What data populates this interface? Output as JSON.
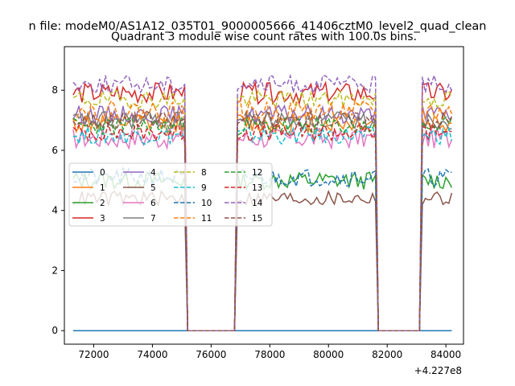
{
  "chart_data": {
    "type": "line",
    "suptitle": "n file: modeM0/AS1A12_035T01_9000005666_41406cztM0_level2_quad_clean",
    "title": "Quadrant 3 module wise count rates with 100.0s bins.",
    "xlabel": "",
    "ylabel": "",
    "x_offset_label": "+4.227e8",
    "xlim": [
      71000,
      84600
    ],
    "ylim": [
      -0.45,
      9.45
    ],
    "x_ticks": [
      72000,
      74000,
      76000,
      78000,
      80000,
      82000,
      84000
    ],
    "x_tick_labels": [
      "72000",
      "74000",
      "76000",
      "78000",
      "80000",
      "82000",
      "84000"
    ],
    "y_ticks": [
      0,
      2,
      4,
      6,
      8
    ],
    "y_tick_labels": [
      "0",
      "2",
      "4",
      "6",
      "8"
    ],
    "grid": false,
    "legend_position": "center-left",
    "legend_columns": 4,
    "bin_seconds": 100,
    "segments": [
      {
        "x_start": 71300,
        "x_end": 75100
      },
      {
        "x_start": 76900,
        "x_end": 81600
      },
      {
        "x_start": 83200,
        "x_end": 84200
      }
    ],
    "gap_value": 0,
    "series": [
      {
        "name": "0",
        "color": "#1f77b4",
        "dash": "solid",
        "level": 0.0,
        "noise": 0.0
      },
      {
        "name": "1",
        "color": "#ff7f0e",
        "dash": "solid",
        "level": 6.9,
        "noise": 0.35
      },
      {
        "name": "2",
        "color": "#2ca02c",
        "dash": "solid",
        "level": 5.0,
        "noise": 0.3
      },
      {
        "name": "3",
        "color": "#d62728",
        "dash": "solid",
        "level": 7.9,
        "noise": 0.35
      },
      {
        "name": "4",
        "color": "#9467bd",
        "dash": "solid",
        "level": 7.2,
        "noise": 0.3
      },
      {
        "name": "5",
        "color": "#8c564b",
        "dash": "solid",
        "level": 4.4,
        "noise": 0.25
      },
      {
        "name": "6",
        "color": "#e377c2",
        "dash": "solid",
        "level": 6.4,
        "noise": 0.35
      },
      {
        "name": "7",
        "color": "#7f7f7f",
        "dash": "solid",
        "level": 7.0,
        "noise": 0.3
      },
      {
        "name": "8",
        "color": "#bcbd22",
        "dash": "dashed",
        "level": 7.7,
        "noise": 0.3
      },
      {
        "name": "9",
        "color": "#17becf",
        "dash": "dashed",
        "level": 6.5,
        "noise": 0.3
      },
      {
        "name": "10",
        "color": "#1f77b4",
        "dash": "dashed",
        "level": 5.1,
        "noise": 0.3
      },
      {
        "name": "11",
        "color": "#ff7f0e",
        "dash": "dashed",
        "level": 7.3,
        "noise": 0.35
      },
      {
        "name": "12",
        "color": "#2ca02c",
        "dash": "dashed",
        "level": 6.8,
        "noise": 0.3
      },
      {
        "name": "13",
        "color": "#d62728",
        "dash": "dashed",
        "level": 6.6,
        "noise": 0.3
      },
      {
        "name": "14",
        "color": "#9467bd",
        "dash": "dashed",
        "level": 8.2,
        "noise": 0.3
      },
      {
        "name": "15",
        "color": "#8c564b",
        "dash": "dashed",
        "level": 7.0,
        "noise": 0.3
      }
    ]
  }
}
